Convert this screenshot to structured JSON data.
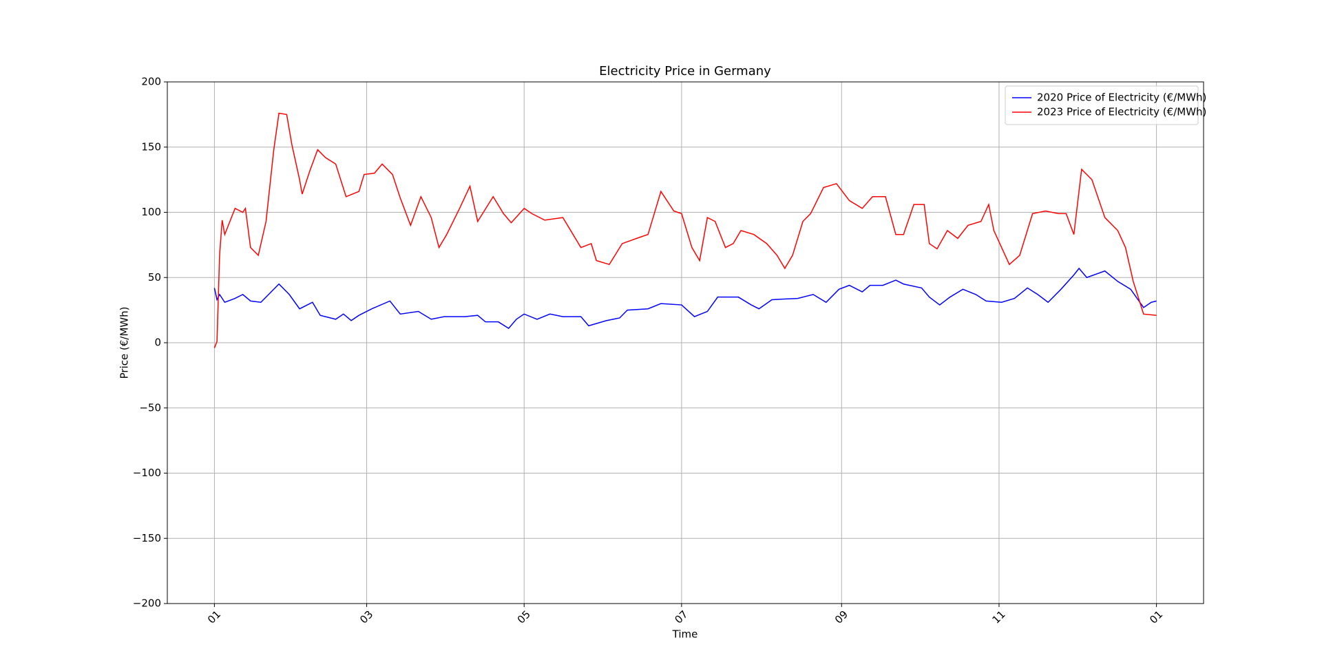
{
  "chart_data": {
    "type": "line",
    "title": "Electricity Price in Germany",
    "xlabel": "Time",
    "ylabel": "Price (€/MWh)",
    "xlim": [
      -18.25,
      383.25
    ],
    "xticks": [
      {
        "value": 0,
        "label": "01"
      },
      {
        "value": 59,
        "label": "03"
      },
      {
        "value": 120,
        "label": "05"
      },
      {
        "value": 181,
        "label": "07"
      },
      {
        "value": 243,
        "label": "09"
      },
      {
        "value": 304,
        "label": "11"
      },
      {
        "value": 365,
        "label": "01"
      }
    ],
    "ylim": [
      -200,
      200
    ],
    "yticks": [
      {
        "value": -200,
        "label": "−200"
      },
      {
        "value": -150,
        "label": "−150"
      },
      {
        "value": -100,
        "label": "−100"
      },
      {
        "value": -50,
        "label": "−50"
      },
      0,
      50,
      100,
      150,
      200
    ],
    "grid": true,
    "legend": "upper right",
    "series": [
      {
        "name": "2020 Price of Electricity (€/MWh)",
        "color": "#0000ff",
        "x": [
          0,
          1,
          2,
          4,
          8,
          11,
          14,
          18,
          21,
          25,
          29,
          33,
          38,
          41,
          47,
          50,
          53,
          56,
          61,
          68,
          72,
          79,
          84,
          89,
          97,
          102,
          105,
          110,
          114,
          117,
          120,
          125,
          130,
          135,
          142,
          145,
          152,
          157,
          160,
          168,
          173,
          181,
          186,
          191,
          195,
          203,
          208,
          211,
          216,
          226,
          232,
          237,
          242,
          246,
          251,
          254,
          259,
          264,
          267,
          274,
          277,
          281,
          285,
          290,
          295,
          299,
          305,
          310,
          315,
          319,
          323,
          328,
          333,
          335,
          338,
          345,
          350,
          355,
          360,
          363,
          365
        ],
        "values": [
          42,
          33,
          37,
          31,
          34,
          37,
          32,
          31,
          37,
          45,
          37,
          26,
          31,
          21,
          18,
          22,
          17,
          21,
          26,
          32,
          22,
          24,
          18,
          20,
          20,
          21,
          16,
          16,
          11,
          18,
          22,
          18,
          22,
          20,
          20,
          13,
          17,
          19,
          25,
          26,
          30,
          29,
          20,
          24,
          35,
          35,
          29,
          26,
          33,
          34,
          37,
          31,
          41,
          44,
          39,
          44,
          44,
          48,
          45,
          42,
          35,
          29,
          35,
          41,
          37,
          32,
          31,
          34,
          42,
          37,
          31,
          41,
          52,
          57,
          50,
          55,
          47,
          41,
          27,
          31,
          32
        ]
      },
      {
        "name": "2023 Price of Electricity (€/MWh)",
        "color": "#ff0000",
        "x": [
          0,
          1,
          2,
          3,
          4,
          6,
          8,
          11,
          12,
          14,
          17,
          20,
          23,
          25,
          28,
          30,
          33,
          34,
          37,
          40,
          43,
          47,
          51,
          56,
          58,
          62,
          65,
          69,
          72,
          76,
          80,
          84,
          87,
          90,
          95,
          99,
          102,
          108,
          112,
          115,
          120,
          123,
          128,
          135,
          142,
          146,
          148,
          153,
          158,
          165,
          168,
          173,
          178,
          181,
          185,
          188,
          191,
          194,
          198,
          201,
          204,
          209,
          214,
          218,
          221,
          224,
          228,
          231,
          236,
          241,
          246,
          251,
          255,
          260,
          264,
          267,
          271,
          275,
          277,
          280,
          284,
          288,
          292,
          297,
          300,
          302,
          305,
          308,
          312,
          317,
          322,
          327,
          330,
          333,
          336,
          340,
          345,
          350,
          353,
          356,
          360,
          365
        ],
        "values": [
          -4,
          1,
          67,
          94,
          83,
          93,
          103,
          100,
          103,
          73,
          67,
          93,
          148,
          176,
          175,
          152,
          125,
          114,
          132,
          148,
          142,
          137,
          112,
          116,
          129,
          130,
          137,
          129,
          111,
          90,
          112,
          96,
          73,
          83,
          103,
          120,
          93,
          112,
          99,
          92,
          103,
          99,
          94,
          96,
          73,
          76,
          63,
          60,
          76,
          81,
          83,
          116,
          101,
          99,
          73,
          63,
          96,
          93,
          73,
          76,
          86,
          83,
          76,
          67,
          57,
          67,
          93,
          99,
          119,
          122,
          109,
          103,
          112,
          112,
          83,
          83,
          106,
          106,
          76,
          72,
          86,
          80,
          90,
          93,
          106,
          86,
          73,
          60,
          67,
          99,
          101,
          99,
          99,
          83,
          133,
          125,
          96,
          86,
          73,
          47,
          22,
          21
        ]
      }
    ]
  }
}
